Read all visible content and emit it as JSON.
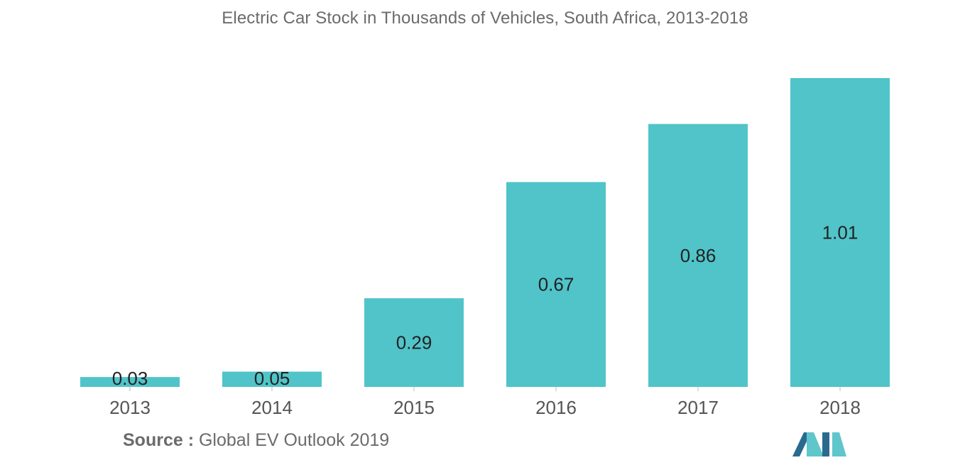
{
  "chart_data": {
    "type": "bar",
    "title": "Electric Car Stock in Thousands of Vehicles, South Africa, 2013-2018",
    "categories": [
      "2013",
      "2014",
      "2015",
      "2016",
      "2017",
      "2018"
    ],
    "values": [
      0.03,
      0.05,
      0.29,
      0.67,
      0.86,
      1.01
    ],
    "value_labels": [
      "0.03",
      "0.05",
      "0.29",
      "0.67",
      "0.86",
      "1.01"
    ],
    "xlabel": "",
    "ylabel": "",
    "ylim": [
      0,
      1.01
    ],
    "grid": false,
    "legend": "none",
    "bar_color": "#50c4c9"
  },
  "source": {
    "label": "Source :",
    "text": "Global EV Outlook 2019"
  },
  "colors": {
    "bar": "#50c4c9",
    "logo_dark": "#2b6a8f",
    "logo_light": "#5fc6cc"
  }
}
